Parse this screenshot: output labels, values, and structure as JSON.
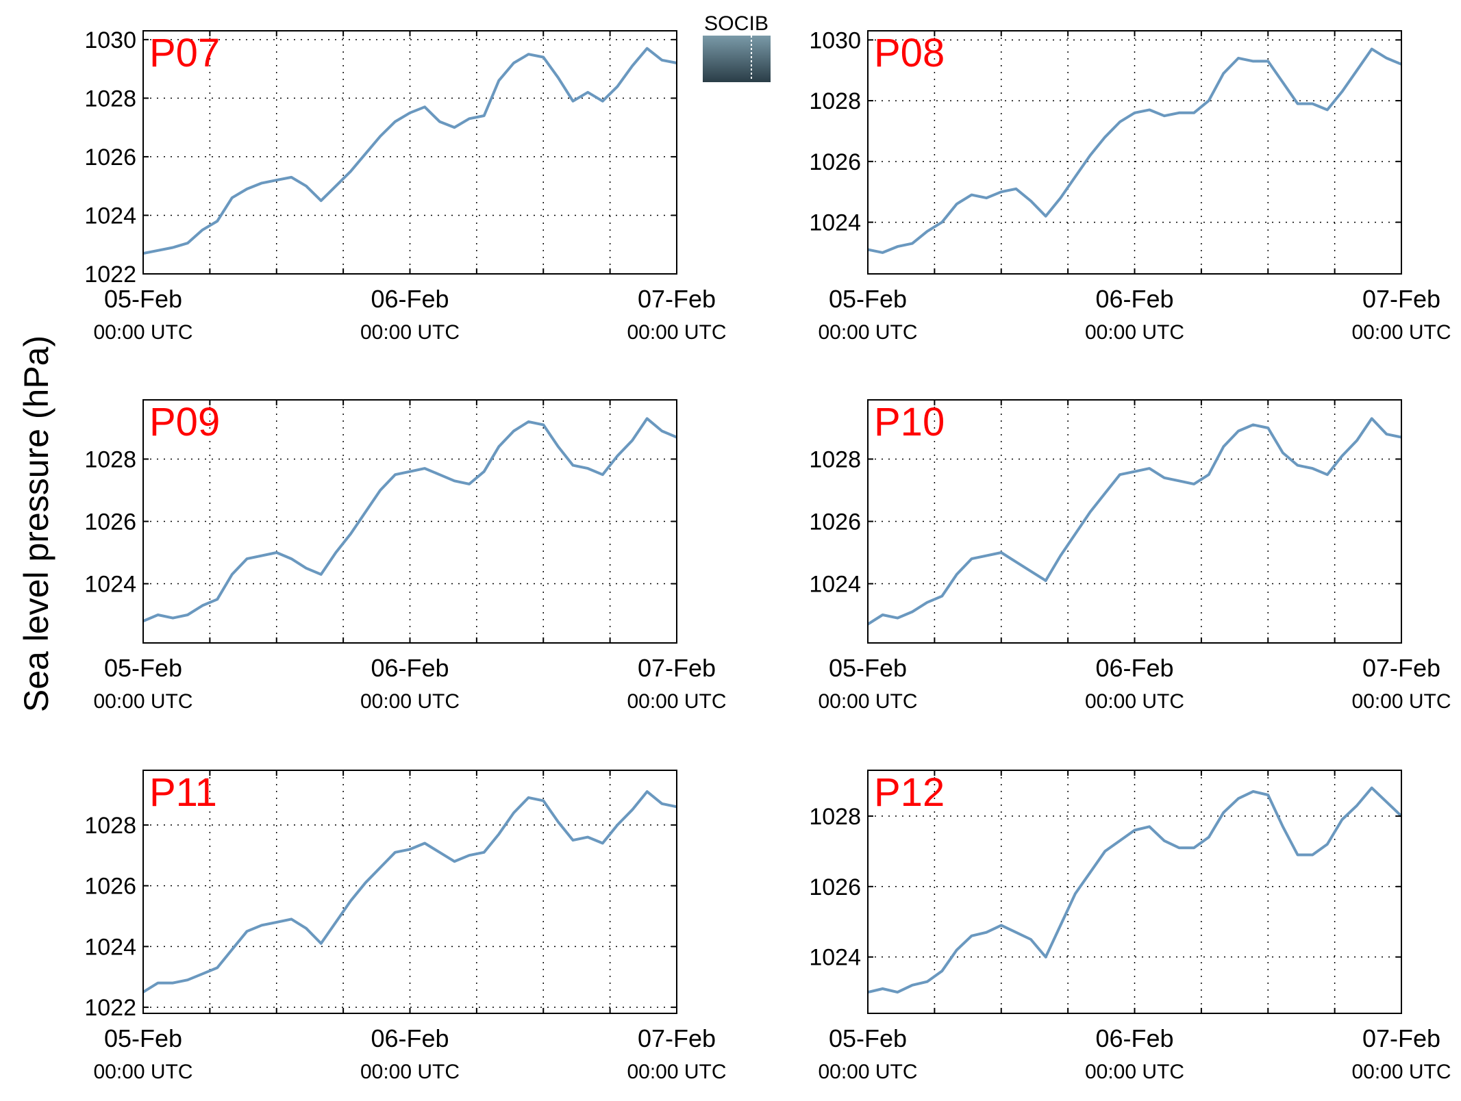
{
  "figure": {
    "ylabel": "Sea level pressure (hPa)",
    "logo_text": "SOCIB",
    "colors": {
      "line": "#6a98bf",
      "panel_label": "#ff0000",
      "axis": "#000000",
      "logo_top": "#5fc0d6",
      "logo_bottom": "#2a3d47"
    }
  },
  "chart_data": [
    {
      "type": "line",
      "label": "P07",
      "x_ticks": [
        "05-Feb\n00:00 UTC",
        "06-Feb\n00:00 UTC",
        "07-Feb\n00:00 UTC"
      ],
      "xlim": [
        "05-Feb 00:00 UTC",
        "07-Feb 00:00 UTC"
      ],
      "ylim": [
        1022,
        1030.3
      ],
      "y_ticks": [
        1022,
        1024,
        1026,
        1028,
        1030
      ],
      "grid": true,
      "series": [
        {
          "values": [
            [
              0,
              1022.7
            ],
            [
              2,
              1022.8
            ],
            [
              4,
              1022.9
            ],
            [
              6,
              1023.05
            ],
            [
              8,
              1023.5
            ],
            [
              10,
              1023.8
            ],
            [
              12,
              1024.6
            ],
            [
              14,
              1024.9
            ],
            [
              16,
              1025.1
            ],
            [
              18,
              1025.2
            ],
            [
              20,
              1025.3
            ],
            [
              22,
              1025.0
            ],
            [
              24,
              1024.5
            ],
            [
              26,
              1025.0
            ],
            [
              28,
              1025.5
            ],
            [
              30,
              1026.1
            ],
            [
              32,
              1026.7
            ],
            [
              34,
              1027.2
            ],
            [
              36,
              1027.5
            ],
            [
              38,
              1027.7
            ],
            [
              40,
              1027.2
            ],
            [
              42,
              1027.0
            ],
            [
              44,
              1027.3
            ],
            [
              46,
              1027.4
            ],
            [
              48,
              1028.6
            ],
            [
              50,
              1029.2
            ],
            [
              52,
              1029.5
            ],
            [
              54,
              1029.4
            ],
            [
              56,
              1028.7
            ],
            [
              58,
              1027.9
            ],
            [
              60,
              1028.2
            ],
            [
              62,
              1027.9
            ],
            [
              64,
              1028.4
            ],
            [
              66,
              1029.1
            ],
            [
              68,
              1029.7
            ],
            [
              70,
              1029.3
            ],
            [
              72,
              1029.2
            ]
          ]
        }
      ]
    },
    {
      "type": "line",
      "label": "P08",
      "x_ticks": [
        "05-Feb\n00:00 UTC",
        "06-Feb\n00:00 UTC",
        "07-Feb\n00:00 UTC"
      ],
      "xlim": [
        "05-Feb 00:00 UTC",
        "07-Feb 00:00 UTC"
      ],
      "ylim": [
        1022.3,
        1030.3
      ],
      "y_ticks": [
        1024,
        1026,
        1028,
        1030
      ],
      "grid": true,
      "series": [
        {
          "values": [
            [
              0,
              1023.1
            ],
            [
              2,
              1023.0
            ],
            [
              4,
              1023.2
            ],
            [
              6,
              1023.3
            ],
            [
              8,
              1023.7
            ],
            [
              10,
              1024.0
            ],
            [
              12,
              1024.6
            ],
            [
              14,
              1024.9
            ],
            [
              16,
              1024.8
            ],
            [
              18,
              1025.0
            ],
            [
              20,
              1025.1
            ],
            [
              22,
              1024.7
            ],
            [
              24,
              1024.2
            ],
            [
              26,
              1024.8
            ],
            [
              28,
              1025.5
            ],
            [
              30,
              1026.2
            ],
            [
              32,
              1026.8
            ],
            [
              34,
              1027.3
            ],
            [
              36,
              1027.6
            ],
            [
              38,
              1027.7
            ],
            [
              40,
              1027.5
            ],
            [
              42,
              1027.6
            ],
            [
              44,
              1027.6
            ],
            [
              46,
              1028.0
            ],
            [
              48,
              1028.9
            ],
            [
              50,
              1029.4
            ],
            [
              52,
              1029.3
            ],
            [
              54,
              1029.3
            ],
            [
              56,
              1028.6
            ],
            [
              58,
              1027.9
            ],
            [
              60,
              1027.9
            ],
            [
              62,
              1027.7
            ],
            [
              64,
              1028.3
            ],
            [
              66,
              1029.0
            ],
            [
              68,
              1029.7
            ],
            [
              70,
              1029.4
            ],
            [
              72,
              1029.2
            ]
          ]
        }
      ]
    },
    {
      "type": "line",
      "label": "P09",
      "x_ticks": [
        "05-Feb\n00:00 UTC",
        "06-Feb\n00:00 UTC",
        "07-Feb\n00:00 UTC"
      ],
      "xlim": [
        "05-Feb 00:00 UTC",
        "07-Feb 00:00 UTC"
      ],
      "ylim": [
        1022.1,
        1029.9
      ],
      "y_ticks": [
        1024,
        1026,
        1028
      ],
      "grid": true,
      "series": [
        {
          "values": [
            [
              0,
              1022.8
            ],
            [
              2,
              1023.0
            ],
            [
              4,
              1022.9
            ],
            [
              6,
              1023.0
            ],
            [
              8,
              1023.3
            ],
            [
              10,
              1023.5
            ],
            [
              12,
              1024.3
            ],
            [
              14,
              1024.8
            ],
            [
              16,
              1024.9
            ],
            [
              18,
              1025.0
            ],
            [
              20,
              1024.8
            ],
            [
              22,
              1024.5
            ],
            [
              24,
              1024.3
            ],
            [
              26,
              1025.0
            ],
            [
              28,
              1025.6
            ],
            [
              30,
              1026.3
            ],
            [
              32,
              1027.0
            ],
            [
              34,
              1027.5
            ],
            [
              36,
              1027.6
            ],
            [
              38,
              1027.7
            ],
            [
              40,
              1027.5
            ],
            [
              42,
              1027.3
            ],
            [
              44,
              1027.2
            ],
            [
              46,
              1027.6
            ],
            [
              48,
              1028.4
            ],
            [
              50,
              1028.9
            ],
            [
              52,
              1029.2
            ],
            [
              54,
              1029.1
            ],
            [
              56,
              1028.4
            ],
            [
              58,
              1027.8
            ],
            [
              60,
              1027.7
            ],
            [
              62,
              1027.5
            ],
            [
              64,
              1028.1
            ],
            [
              66,
              1028.6
            ],
            [
              68,
              1029.3
            ],
            [
              70,
              1028.9
            ],
            [
              72,
              1028.7
            ]
          ]
        }
      ]
    },
    {
      "type": "line",
      "label": "P10",
      "x_ticks": [
        "05-Feb\n00:00 UTC",
        "06-Feb\n00:00 UTC",
        "07-Feb\n00:00 UTC"
      ],
      "xlim": [
        "05-Feb 00:00 UTC",
        "07-Feb 00:00 UTC"
      ],
      "ylim": [
        1022.1,
        1029.9
      ],
      "y_ticks": [
        1024,
        1026,
        1028
      ],
      "grid": true,
      "series": [
        {
          "values": [
            [
              0,
              1022.7
            ],
            [
              2,
              1023.0
            ],
            [
              4,
              1022.9
            ],
            [
              6,
              1023.1
            ],
            [
              8,
              1023.4
            ],
            [
              10,
              1023.6
            ],
            [
              12,
              1024.3
            ],
            [
              14,
              1024.8
            ],
            [
              16,
              1024.9
            ],
            [
              18,
              1025.0
            ],
            [
              20,
              1024.7
            ],
            [
              22,
              1024.4
            ],
            [
              24,
              1024.1
            ],
            [
              26,
              1024.9
            ],
            [
              28,
              1025.6
            ],
            [
              30,
              1026.3
            ],
            [
              32,
              1026.9
            ],
            [
              34,
              1027.5
            ],
            [
              36,
              1027.6
            ],
            [
              38,
              1027.7
            ],
            [
              40,
              1027.4
            ],
            [
              42,
              1027.3
            ],
            [
              44,
              1027.2
            ],
            [
              46,
              1027.5
            ],
            [
              48,
              1028.4
            ],
            [
              50,
              1028.9
            ],
            [
              52,
              1029.1
            ],
            [
              54,
              1029.0
            ],
            [
              56,
              1028.2
            ],
            [
              58,
              1027.8
            ],
            [
              60,
              1027.7
            ],
            [
              62,
              1027.5
            ],
            [
              64,
              1028.1
            ],
            [
              66,
              1028.6
            ],
            [
              68,
              1029.3
            ],
            [
              70,
              1028.8
            ],
            [
              72,
              1028.7
            ]
          ]
        }
      ]
    },
    {
      "type": "line",
      "label": "P11",
      "x_ticks": [
        "05-Feb\n00:00 UTC",
        "06-Feb\n00:00 UTC",
        "07-Feb\n00:00 UTC"
      ],
      "xlim": [
        "05-Feb 00:00 UTC",
        "07-Feb 00:00 UTC"
      ],
      "ylim": [
        1021.8,
        1029.8
      ],
      "y_ticks": [
        1022,
        1024,
        1026,
        1028
      ],
      "grid": true,
      "series": [
        {
          "values": [
            [
              0,
              1022.5
            ],
            [
              2,
              1022.8
            ],
            [
              4,
              1022.8
            ],
            [
              6,
              1022.9
            ],
            [
              8,
              1023.1
            ],
            [
              10,
              1023.3
            ],
            [
              12,
              1023.9
            ],
            [
              14,
              1024.5
            ],
            [
              16,
              1024.7
            ],
            [
              18,
              1024.8
            ],
            [
              20,
              1024.9
            ],
            [
              22,
              1024.6
            ],
            [
              24,
              1024.1
            ],
            [
              26,
              1024.8
            ],
            [
              28,
              1025.5
            ],
            [
              30,
              1026.1
            ],
            [
              32,
              1026.6
            ],
            [
              34,
              1027.1
            ],
            [
              36,
              1027.2
            ],
            [
              38,
              1027.4
            ],
            [
              40,
              1027.1
            ],
            [
              42,
              1026.8
            ],
            [
              44,
              1027.0
            ],
            [
              46,
              1027.1
            ],
            [
              48,
              1027.7
            ],
            [
              50,
              1028.4
            ],
            [
              52,
              1028.9
            ],
            [
              54,
              1028.8
            ],
            [
              56,
              1028.1
            ],
            [
              58,
              1027.5
            ],
            [
              60,
              1027.6
            ],
            [
              62,
              1027.4
            ],
            [
              64,
              1028.0
            ],
            [
              66,
              1028.5
            ],
            [
              68,
              1029.1
            ],
            [
              70,
              1028.7
            ],
            [
              72,
              1028.6
            ]
          ]
        }
      ]
    },
    {
      "type": "line",
      "label": "P12",
      "x_ticks": [
        "05-Feb\n00:00 UTC",
        "06-Feb\n00:00 UTC",
        "07-Feb\n00:00 UTC"
      ],
      "xlim": [
        "05-Feb 00:00 UTC",
        "07-Feb 00:00 UTC"
      ],
      "ylim": [
        1022.4,
        1029.3
      ],
      "y_ticks": [
        1024,
        1026,
        1028
      ],
      "grid": true,
      "series": [
        {
          "values": [
            [
              0,
              1023.0
            ],
            [
              2,
              1023.1
            ],
            [
              4,
              1023.0
            ],
            [
              6,
              1023.2
            ],
            [
              8,
              1023.3
            ],
            [
              10,
              1023.6
            ],
            [
              12,
              1024.2
            ],
            [
              14,
              1024.6
            ],
            [
              16,
              1024.7
            ],
            [
              18,
              1024.9
            ],
            [
              20,
              1024.7
            ],
            [
              22,
              1024.5
            ],
            [
              24,
              1024.0
            ],
            [
              26,
              1024.9
            ],
            [
              28,
              1025.8
            ],
            [
              30,
              1026.4
            ],
            [
              32,
              1027.0
            ],
            [
              34,
              1027.3
            ],
            [
              36,
              1027.6
            ],
            [
              38,
              1027.7
            ],
            [
              40,
              1027.3
            ],
            [
              42,
              1027.1
            ],
            [
              44,
              1027.1
            ],
            [
              46,
              1027.4
            ],
            [
              48,
              1028.1
            ],
            [
              50,
              1028.5
            ],
            [
              52,
              1028.7
            ],
            [
              54,
              1028.6
            ],
            [
              56,
              1027.7
            ],
            [
              58,
              1026.9
            ],
            [
              60,
              1026.9
            ],
            [
              62,
              1027.2
            ],
            [
              64,
              1027.9
            ],
            [
              66,
              1028.3
            ],
            [
              68,
              1028.8
            ],
            [
              70,
              1028.4
            ],
            [
              72,
              1028.0
            ]
          ]
        }
      ]
    }
  ]
}
